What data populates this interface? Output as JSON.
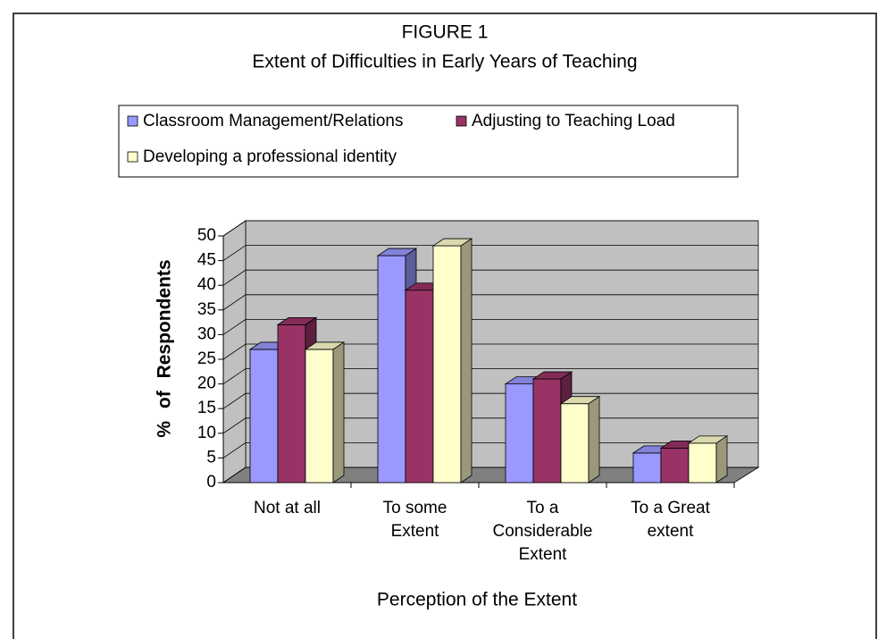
{
  "chart_data": {
    "type": "bar3d",
    "title": "FIGURE 1",
    "subtitle": "Extent of Difficulties in Early Years of Teaching",
    "x_label": "Perception of the Extent",
    "y_label": "% of Respondents",
    "categories": [
      "Not at all",
      "To some Extent",
      "To a Considerable Extent",
      "To a Great extent"
    ],
    "series": [
      {
        "name": "Classroom Management/Relations",
        "color": "#9999ff",
        "values": [
          27,
          46,
          20,
          6
        ]
      },
      {
        "name": "Adjusting to Teaching Load",
        "color": "#993366",
        "values": [
          32,
          39,
          21,
          7
        ]
      },
      {
        "name": "Developing a professional identity",
        "color": "#ffffcc",
        "values": [
          27,
          48,
          16,
          8
        ]
      }
    ],
    "ylim": [
      0,
      50
    ],
    "yticks": [
      0,
      5,
      10,
      15,
      20,
      25,
      30,
      35,
      40,
      45,
      50
    ],
    "grid": true
  }
}
